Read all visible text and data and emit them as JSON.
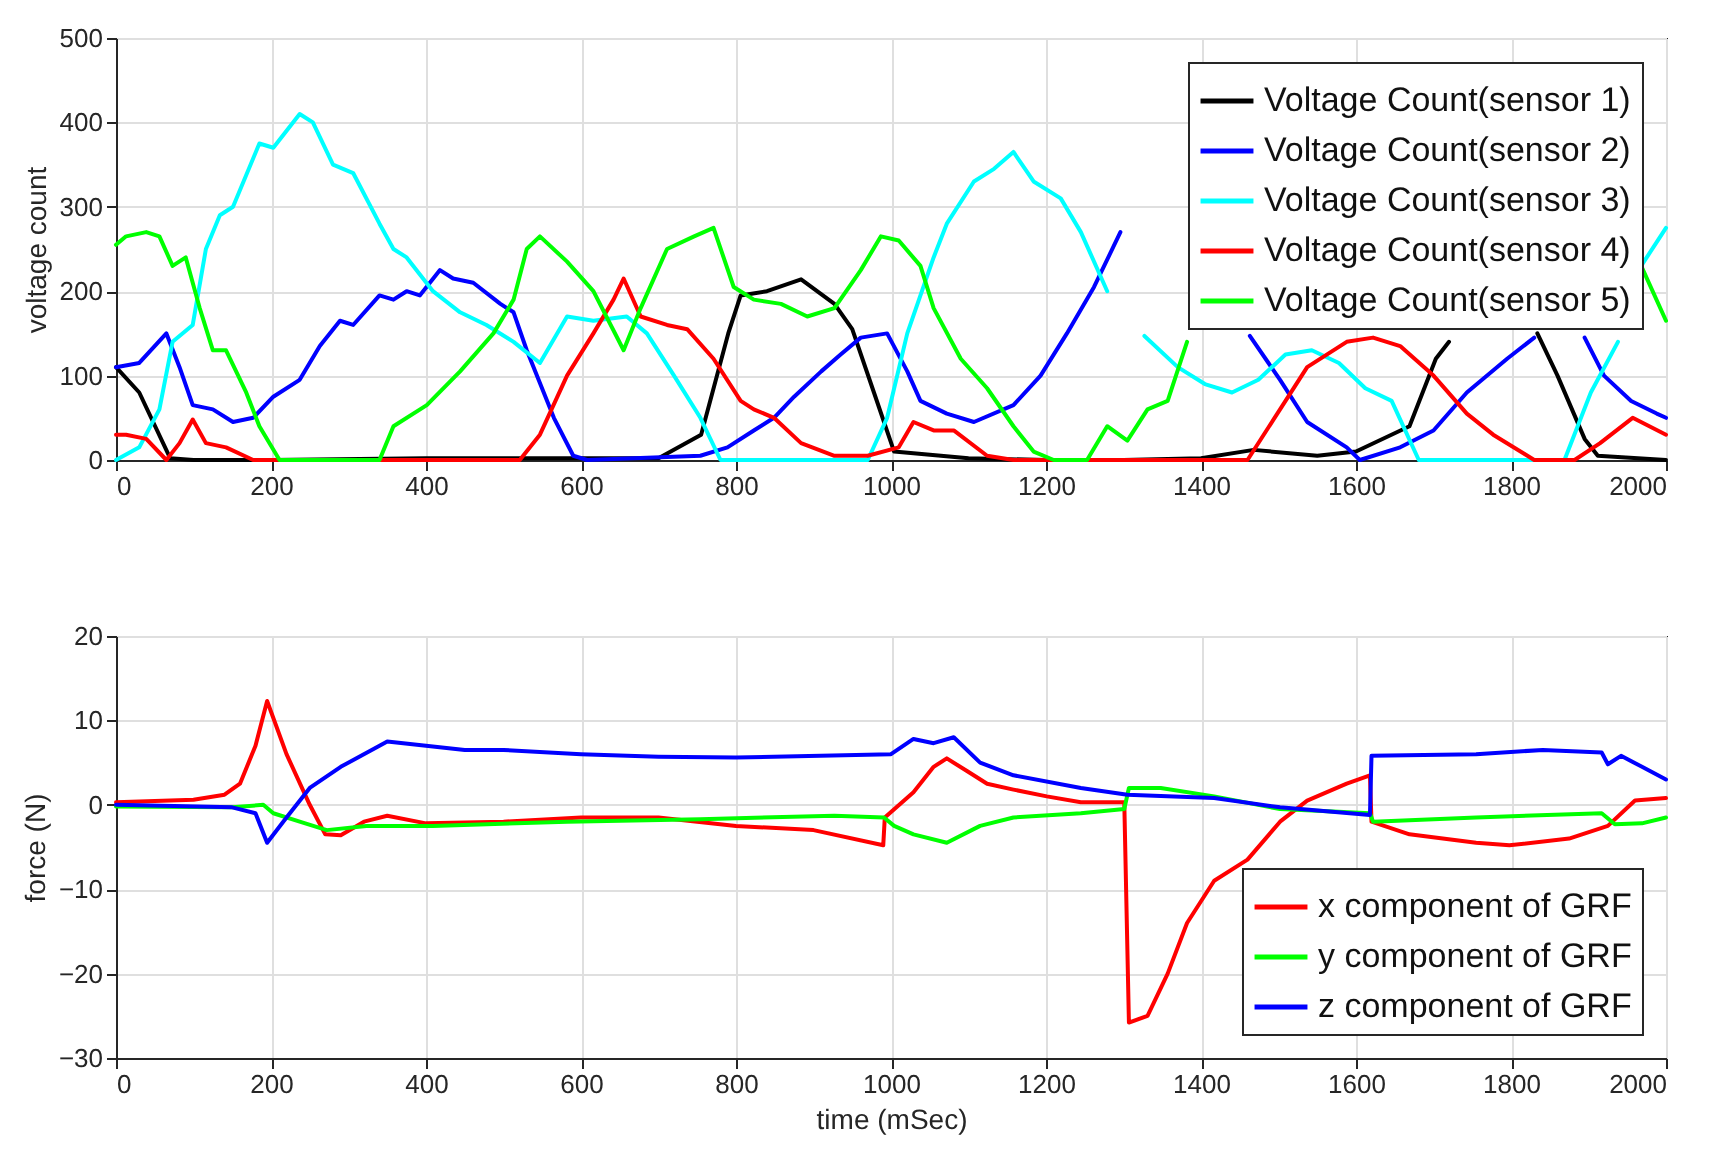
{
  "chart_data": [
    {
      "type": "line",
      "ylabel": "voltage count",
      "xlim": [
        0,
        2000
      ],
      "xticks": [
        0,
        200,
        400,
        600,
        800,
        1000,
        1200,
        1400,
        1600,
        1800,
        2000
      ],
      "ylim": [
        0,
        500
      ],
      "yticks": [
        0,
        100,
        200,
        300,
        400,
        500
      ],
      "grid": true,
      "legend": "top right",
      "line_style": "solid",
      "marker": "none",
      "series": [
        {
          "name": "Voltage Count(sensor 1)",
          "color": "#000000",
          "x": [
            0,
            30,
            70,
            100,
            200,
            400,
            600,
            700,
            755,
            790,
            806,
            840,
            884,
            927,
            950,
            978,
            1004,
            1100,
            1200,
            1300,
            1400,
            1468,
            1550,
            1600,
            1669,
            1703,
            1720,
            1735,
            1834,
            1860,
            1895,
            1912,
            2000
          ],
          "values": [
            110,
            80,
            2,
            0,
            0,
            2,
            2,
            2,
            30,
            150,
            195,
            200,
            214,
            185,
            155,
            80,
            10,
            2,
            0,
            0,
            2,
            12,
            5,
            10,
            40,
            120,
            140,
            null,
            150,
            100,
            25,
            5,
            0
          ]
        },
        {
          "name": "Voltage Count(sensor 2)",
          "color": "#0000ff",
          "x": [
            0,
            30,
            65,
            82,
            99,
            125,
            151,
            177,
            203,
            237,
            263,
            289,
            306,
            340,
            358,
            375,
            392,
            418,
            435,
            461,
            496,
            513,
            530,
            565,
            590,
            608,
            754,
            789,
            823,
            849,
            875,
            910,
            935,
            961,
            995,
            1021,
            1038,
            1072,
            1107,
            1158,
            1193,
            1227,
            1262,
            1296,
            1380,
            1463,
            1502,
            1537,
            1588,
            1605,
            1657,
            1700,
            1743,
            1795,
            1830,
            1860,
            1895,
            1920,
            1955,
            1988,
            2000
          ],
          "values": [
            110,
            115,
            150,
            110,
            65,
            60,
            45,
            50,
            75,
            95,
            135,
            165,
            160,
            195,
            190,
            200,
            195,
            225,
            215,
            210,
            185,
            175,
            130,
            50,
            5,
            0,
            5,
            15,
            35,
            50,
            75,
            105,
            125,
            145,
            150,
            105,
            70,
            55,
            45,
            65,
            100,
            150,
            205,
            270,
            null,
            147,
            95,
            45,
            15,
            0,
            15,
            35,
            80,
            120,
            145,
            null,
            145,
            100,
            70,
            55,
            50
          ]
        },
        {
          "name": "Voltage Count(sensor 3)",
          "color": "#00ffff",
          "x": [
            0,
            30,
            56,
            73,
            99,
            116,
            134,
            151,
            185,
            203,
            237,
            254,
            280,
            306,
            340,
            358,
            375,
            409,
            444,
            478,
            513,
            547,
            582,
            616,
            659,
            685,
            720,
            754,
            780,
            970,
            995,
            1021,
            1055,
            1072,
            1107,
            1133,
            1158,
            1184,
            1219,
            1245,
            1279,
            1300,
            1327,
            1370,
            1405,
            1440,
            1474,
            1509,
            1543,
            1578,
            1612,
            1646,
            1681,
            1869,
            1903,
            1938,
            1955,
            1968,
            2000
          ],
          "values": [
            0,
            15,
            60,
            140,
            160,
            250,
            290,
            300,
            375,
            370,
            410,
            400,
            350,
            340,
            280,
            250,
            240,
            200,
            175,
            160,
            140,
            115,
            170,
            165,
            170,
            150,
            100,
            50,
            0,
            0,
            50,
            150,
            240,
            280,
            330,
            345,
            365,
            330,
            310,
            270,
            200,
            null,
            147,
            110,
            90,
            80,
            95,
            125,
            130,
            115,
            85,
            70,
            0,
            0,
            80,
            140,
            null,
            230,
            275
          ]
        },
        {
          "name": "Voltage Count(sensor 4)",
          "color": "#ff0000",
          "x": [
            0,
            13,
            39,
            65,
            82,
            99,
            116,
            142,
            177,
            521,
            547,
            582,
            616,
            642,
            655,
            677,
            711,
            737,
            771,
            806,
            823,
            849,
            884,
            927,
            970,
            1010,
            1029,
            1055,
            1081,
            1124,
            1158,
            1460,
            1502,
            1537,
            1588,
            1622,
            1657,
            1700,
            1743,
            1777,
            1830,
            1882,
            1915,
            1957,
            2000
          ],
          "values": [
            30,
            30,
            25,
            0,
            20,
            48,
            20,
            15,
            0,
            0,
            30,
            100,
            150,
            190,
            215,
            170,
            160,
            155,
            120,
            70,
            60,
            50,
            20,
            5,
            5,
            15,
            45,
            35,
            35,
            5,
            0,
            0,
            60,
            110,
            140,
            145,
            135,
            100,
            55,
            30,
            0,
            0,
            20,
            50,
            30
          ]
        },
        {
          "name": "Voltage Count(sensor 5)",
          "color": "#00ff00",
          "x": [
            0,
            13,
            39,
            56,
            73,
            90,
            108,
            125,
            142,
            168,
            185,
            211,
            340,
            358,
            401,
            444,
            487,
            513,
            530,
            547,
            582,
            616,
            655,
            677,
            711,
            746,
            771,
            797,
            823,
            858,
            892,
            927,
            961,
            987,
            1010,
            1038,
            1055,
            1090,
            1124,
            1158,
            1184,
            1210,
            1253,
            1279,
            1305,
            1331,
            1357,
            1382,
            1420,
            1968,
            2000
          ],
          "values": [
            255,
            265,
            270,
            265,
            230,
            240,
            180,
            130,
            130,
            80,
            40,
            0,
            0,
            40,
            65,
            105,
            150,
            190,
            250,
            265,
            235,
            200,
            130,
            180,
            250,
            265,
            275,
            205,
            190,
            185,
            170,
            180,
            225,
            265,
            260,
            230,
            180,
            120,
            85,
            40,
            10,
            0,
            0,
            40,
            23,
            60,
            70,
            140,
            null,
            230,
            165
          ]
        }
      ]
    },
    {
      "type": "line",
      "xlabel": "time (mSec)",
      "ylabel": "force (N)",
      "xlim": [
        0,
        2000
      ],
      "xticks": [
        0,
        200,
        400,
        600,
        800,
        1000,
        1200,
        1400,
        1600,
        1800,
        2000
      ],
      "ylim": [
        -30,
        20
      ],
      "yticks": [
        -30,
        -20,
        -10,
        0,
        10,
        20
      ],
      "grid": true,
      "legend": "bottom right",
      "line_style": "solid",
      "marker": "none",
      "series": [
        {
          "name": "x component of GRF",
          "color": "#ff0000",
          "x": [
            0,
            100,
            140,
            160,
            180,
            195,
            220,
            250,
            270,
            290,
            320,
            350,
            400,
            500,
            600,
            700,
            800,
            900,
            990,
            992,
            1029,
            1055,
            1072,
            1098,
            1124,
            1158,
            1201,
            1245,
            1301,
            1307,
            1331,
            1357,
            1382,
            1417,
            1460,
            1502,
            1537,
            1588,
            1618,
            1620,
            1669,
            1755,
            1798,
            1875,
            1925,
            1960,
            2000
          ],
          "values": [
            0.3,
            0.6,
            1.2,
            2.5,
            7,
            12.3,
            6,
            0,
            -3.5,
            -3.6,
            -2,
            -1.3,
            -2.2,
            -2,
            -1.5,
            -1.5,
            -2.5,
            -3,
            -4.8,
            -1.5,
            1.5,
            4.5,
            5.5,
            4,
            2.5,
            1.8,
            1,
            0.3,
            0.3,
            -25.8,
            -25,
            -20,
            -14,
            -9,
            -6.5,
            -2,
            0.5,
            2.5,
            3.5,
            -2,
            -3.5,
            -4.5,
            -4.8,
            -4,
            -2.5,
            0.5,
            0.8
          ]
        },
        {
          "name": "y component of GRF",
          "color": "#00ff00",
          "x": [
            0,
            150,
            190,
            203,
            237,
            272,
            323,
            409,
            582,
            754,
            927,
            991,
            1004,
            1029,
            1072,
            1115,
            1158,
            1245,
            1301,
            1307,
            1348,
            1417,
            1502,
            1618,
            1622,
            1755,
            1917,
            1934,
            1969,
            2000
          ],
          "values": [
            -0.2,
            -0.3,
            0,
            -1,
            -2,
            -3,
            -2.5,
            -2.5,
            -2,
            -1.7,
            -1.3,
            -1.5,
            -2.5,
            -3.5,
            -4.5,
            -2.5,
            -1.5,
            -1,
            -0.5,
            2,
            2,
            1,
            -0.5,
            -1,
            -2,
            -1.5,
            -1,
            -2.3,
            -2.2,
            -1.5
          ]
        },
        {
          "name": "z component of GRF",
          "color": "#0000ff",
          "x": [
            0,
            150,
            180,
            195,
            220,
            250,
            290,
            340,
            350,
            400,
            450,
            500,
            600,
            700,
            800,
            1000,
            1029,
            1055,
            1081,
            1115,
            1158,
            1245,
            1305,
            1417,
            1502,
            1618,
            1620,
            1755,
            1841,
            1917,
            1925,
            1942,
            1969,
            2000
          ],
          "values": [
            0,
            -0.3,
            -1,
            -4.5,
            -1.5,
            2,
            4.5,
            7,
            7.5,
            7,
            6.5,
            6.5,
            6,
            5.7,
            5.6,
            6,
            7.8,
            7.3,
            8,
            5,
            3.5,
            2,
            1.2,
            0.8,
            -0.3,
            -1.2,
            5.8,
            6,
            6.5,
            6.2,
            4.8,
            5.8,
            4.5,
            3
          ]
        }
      ]
    }
  ]
}
